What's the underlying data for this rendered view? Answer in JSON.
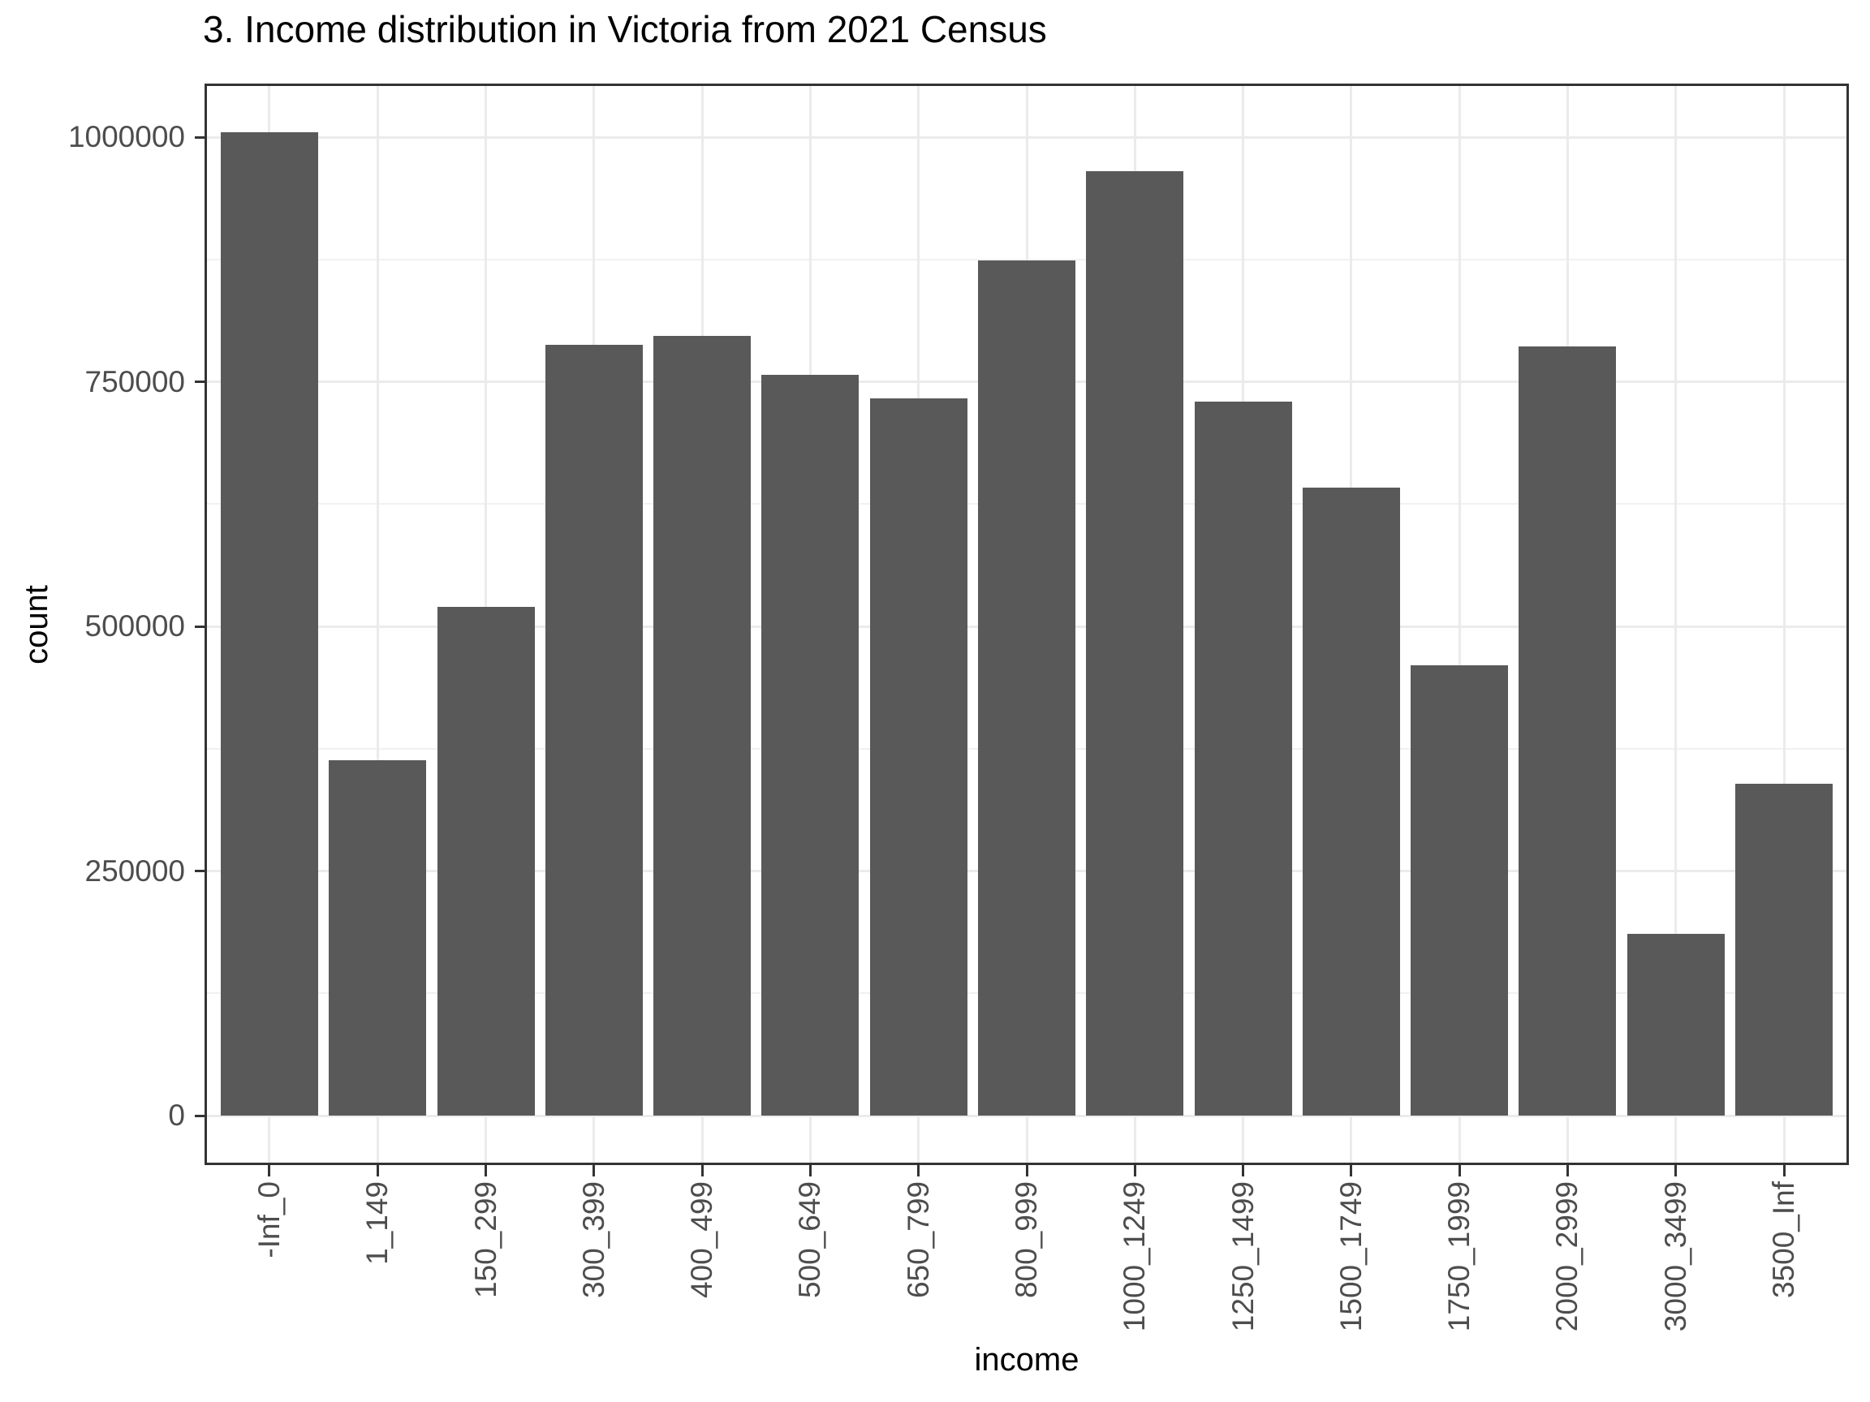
{
  "chart_data": {
    "type": "bar",
    "title": "3. Income distribution in Victoria from 2021 Census",
    "xlabel": "income",
    "ylabel": "count",
    "categories": [
      "-Inf_0",
      "1_149",
      "150_299",
      "300_399",
      "400_499",
      "500_649",
      "650_799",
      "800_999",
      "1000_1249",
      "1250_1499",
      "1500_1749",
      "1750_1999",
      "2000_2999",
      "3000_3499",
      "3500_Inf"
    ],
    "values": [
      1005000,
      363000,
      520000,
      788000,
      797000,
      757000,
      733000,
      874000,
      965000,
      730000,
      642000,
      460000,
      786000,
      186000,
      339000
    ],
    "ylim": [
      0,
      1056000
    ],
    "yticks": [
      0,
      250000,
      500000,
      750000,
      1000000
    ],
    "ytick_labels": [
      "0",
      "250000",
      "500000",
      "750000",
      "1000000"
    ],
    "yminor_ticks": [
      125000,
      375000,
      625000,
      875000
    ],
    "grid": "on",
    "legend_position": "none",
    "colors": {
      "bar_fill": "#595959",
      "panel_border": "#333333",
      "tick_mark": "#333333",
      "grid_major": "#ebebeb",
      "grid_minor": "#f1f1f1",
      "axis_text": "#4d4d4d",
      "title_text": "#000000",
      "background": "#ffffff"
    }
  }
}
